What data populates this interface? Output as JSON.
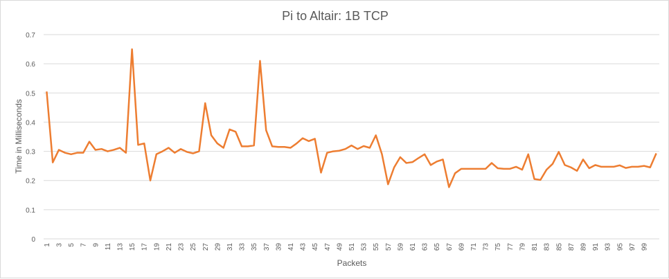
{
  "chart_data": {
    "type": "line",
    "title": "Pi to Altair: 1B TCP",
    "xlabel": "Packets",
    "ylabel": "Time in Milliseconds",
    "ylim": [
      0,
      0.7
    ],
    "yticks": [
      "0",
      "0.1",
      "0.2",
      "0.3",
      "0.4",
      "0.5",
      "0.6",
      "0.7"
    ],
    "grid": true,
    "legend": "none",
    "line_color": "#ED7D31",
    "x": [
      1,
      2,
      3,
      4,
      5,
      6,
      7,
      8,
      9,
      10,
      11,
      12,
      13,
      14,
      15,
      16,
      17,
      18,
      19,
      20,
      21,
      22,
      23,
      24,
      25,
      26,
      27,
      28,
      29,
      30,
      31,
      32,
      33,
      34,
      35,
      36,
      37,
      38,
      39,
      40,
      41,
      42,
      43,
      44,
      45,
      46,
      47,
      48,
      49,
      50,
      51,
      52,
      53,
      54,
      55,
      56,
      57,
      58,
      59,
      60,
      61,
      62,
      63,
      64,
      65,
      66,
      67,
      68,
      69,
      70,
      71,
      72,
      73,
      74,
      75,
      76,
      77,
      78,
      79,
      80,
      81,
      82,
      83,
      84,
      85,
      86,
      87,
      88,
      89,
      90,
      91,
      92,
      93,
      94,
      95,
      96,
      97,
      98,
      99,
      100,
      101
    ],
    "xtick_labels": [
      "1",
      "3",
      "5",
      "7",
      "9",
      "11",
      "13",
      "15",
      "17",
      "19",
      "21",
      "23",
      "25",
      "27",
      "29",
      "31",
      "33",
      "35",
      "37",
      "39",
      "41",
      "43",
      "45",
      "47",
      "49",
      "51",
      "53",
      "55",
      "57",
      "59",
      "61",
      "63",
      "65",
      "67",
      "69",
      "71",
      "73",
      "75",
      "77",
      "79",
      "81",
      "83",
      "85",
      "87",
      "89",
      "91",
      "93",
      "95",
      "97",
      "99"
    ],
    "series": [
      {
        "values": [
          0.505,
          0.262,
          0.305,
          0.295,
          0.29,
          0.295,
          0.295,
          0.333,
          0.305,
          0.308,
          0.3,
          0.305,
          0.312,
          0.295,
          0.65,
          0.322,
          0.327,
          0.2,
          0.29,
          0.3,
          0.312,
          0.295,
          0.308,
          0.298,
          0.293,
          0.3,
          0.465,
          0.355,
          0.327,
          0.312,
          0.375,
          0.367,
          0.317,
          0.317,
          0.32,
          0.61,
          0.372,
          0.317,
          0.315,
          0.315,
          0.312,
          0.327,
          0.345,
          0.335,
          0.343,
          0.227,
          0.295,
          0.3,
          0.302,
          0.308,
          0.32,
          0.308,
          0.318,
          0.312,
          0.355,
          0.29,
          0.187,
          0.245,
          0.28,
          0.26,
          0.263,
          0.277,
          0.29,
          0.253,
          0.265,
          0.272,
          0.177,
          0.225,
          0.24,
          0.24,
          0.24,
          0.24,
          0.24,
          0.26,
          0.242,
          0.24,
          0.24,
          0.247,
          0.237,
          0.29,
          0.205,
          0.202,
          0.237,
          0.257,
          0.298,
          0.253,
          0.245,
          0.233,
          0.272,
          0.242,
          0.253,
          0.247,
          0.247,
          0.247,
          0.252,
          0.243,
          0.247,
          0.247,
          0.25,
          0.245,
          0.293
        ]
      }
    ]
  }
}
